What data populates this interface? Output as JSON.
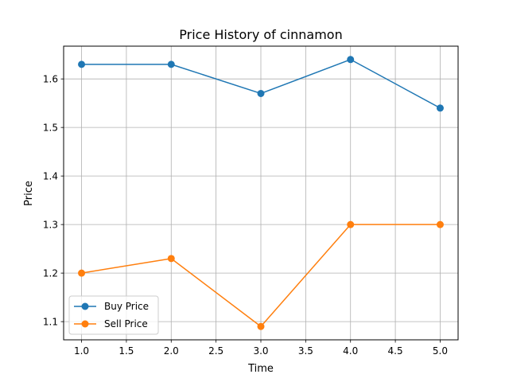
{
  "chart_data": {
    "type": "line",
    "title": "Price History of cinnamon",
    "xlabel": "Time",
    "ylabel": "Price",
    "x": [
      1.0,
      2.0,
      3.0,
      4.0,
      5.0
    ],
    "xlim": [
      0.8,
      5.2
    ],
    "ylim": [
      1.0625,
      1.6675
    ],
    "xticks": [
      "1.0",
      "1.5",
      "2.0",
      "2.5",
      "3.0",
      "3.5",
      "4.0",
      "4.5",
      "5.0"
    ],
    "yticks": [
      "1.1",
      "1.2",
      "1.3",
      "1.4",
      "1.5",
      "1.6"
    ],
    "grid": true,
    "legend_position": "lower-left",
    "series": [
      {
        "name": "Buy Price",
        "values": [
          1.63,
          1.63,
          1.57,
          1.64,
          1.54
        ],
        "color": "#1f77b4"
      },
      {
        "name": "Sell Price",
        "values": [
          1.2,
          1.23,
          1.09,
          1.3,
          1.3
        ],
        "color": "#ff7f0e"
      }
    ]
  }
}
